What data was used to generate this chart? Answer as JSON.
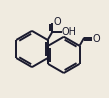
{
  "bg_color": "#f0ebe0",
  "line_color": "#1a1a2e",
  "lw": 1.4,
  "dlo": 0.022,
  "r1cx": 0.27,
  "r1cy": 0.5,
  "r2cx": 0.595,
  "r2cy": 0.44,
  "ring_r": 0.185,
  "cooh_o_text": "O",
  "cooh_oh_text": "OH",
  "cho_o_text": "O",
  "fs": 7.0
}
